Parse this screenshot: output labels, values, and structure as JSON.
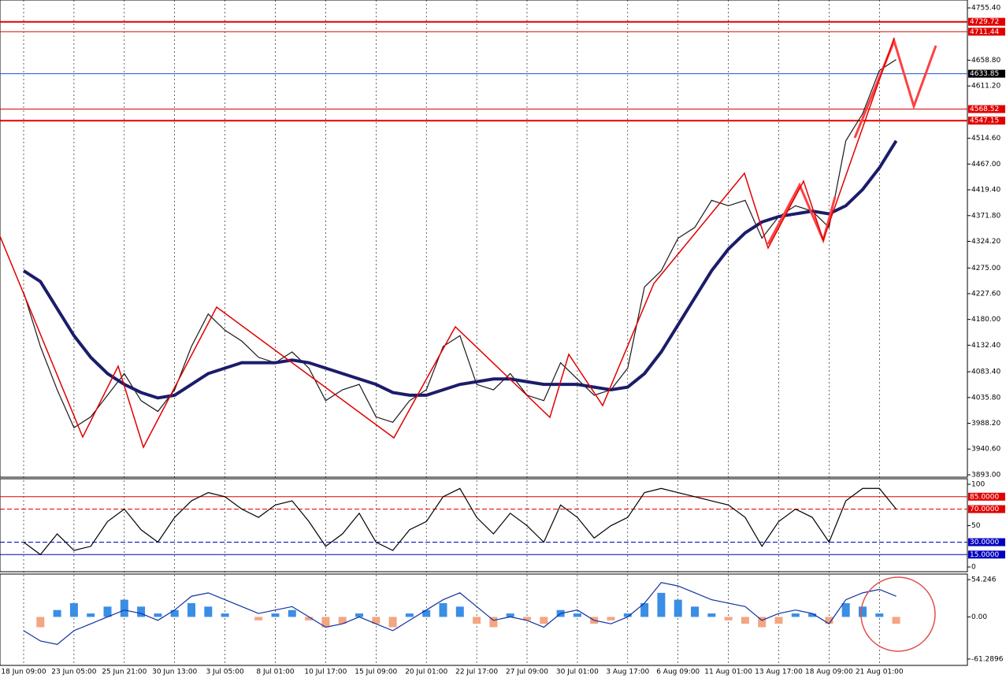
{
  "chart_data": [
    {
      "type": "line",
      "categories": [
        "18 Jun 09:00",
        null,
        null,
        "23 Jun 05:00",
        null,
        null,
        "25 Jun 21:00",
        null,
        null,
        "30 Jun 13:00",
        null,
        null,
        "3 Jul 05:00",
        null,
        null,
        "8 Jul 01:00",
        null,
        null,
        "10 Jul 17:00",
        null,
        null,
        "15 Jul 09:00",
        null,
        null,
        "20 Jul 01:00",
        null,
        null,
        "22 Jul 17:00",
        null,
        null,
        "27 Jul 09:00",
        null,
        null,
        "30 Jul 01:00",
        null,
        null,
        "3 Aug 17:00",
        null,
        null,
        "6 Aug 09:00",
        null,
        null,
        "11 Aug 01:00",
        null,
        null,
        "13 Aug 17:00",
        null,
        null,
        "18 Aug 09:00",
        null,
        null,
        "21 Aug 01:00",
        null
      ],
      "series": [
        {
          "color": "#1a1a1a",
          "values": [
            4230,
            4130,
            4050,
            3980,
            4000,
            4040,
            4080,
            4030,
            4010,
            4050,
            4130,
            4190,
            4160,
            4140,
            4110,
            4100,
            4120,
            4090,
            4030,
            4050,
            4060,
            4000,
            3990,
            4030,
            4050,
            4130,
            4150,
            4060,
            4050,
            4080,
            4040,
            4030,
            4100,
            4070,
            4040,
            4050,
            4090,
            4240,
            4270,
            4330,
            4350,
            4400,
            4390,
            4400,
            4330,
            4370,
            4390,
            4380,
            4350,
            4510,
            4560,
            4640,
            4660
          ]
        },
        {
          "color": "#1c1c6b",
          "values": [
            4270,
            4250,
            4200,
            4150,
            4110,
            4080,
            4060,
            4045,
            4035,
            4040,
            4060,
            4080,
            4090,
            4100,
            4100,
            4100,
            4105,
            4100,
            4090,
            4080,
            4070,
            4060,
            4045,
            4040,
            4040,
            4050,
            4060,
            4065,
            4070,
            4070,
            4065,
            4060,
            4060,
            4060,
            4055,
            4050,
            4055,
            4080,
            4120,
            4170,
            4220,
            4270,
            4310,
            4340,
            4360,
            4370,
            4375,
            4380,
            4375,
            4390,
            4420,
            4460,
            4510
          ]
        }
      ],
      "ylim": [
        3888.6,
        4770
      ],
      "yticks": [
        {
          "value": 4755.4,
          "label": "4755.40"
        },
        {
          "value": 4658.8,
          "label": "4658.80"
        },
        {
          "value": 4611.2,
          "label": "4611.20"
        },
        {
          "value": 4514.6,
          "label": "4514.60"
        },
        {
          "value": 4467,
          "label": "4467.00"
        },
        {
          "value": 4419.4,
          "label": "4419.40"
        },
        {
          "value": 4371.8,
          "label": "4371.80"
        },
        {
          "value": 4324.2,
          "label": "4324.20"
        },
        {
          "value": 4275,
          "label": "4275.00"
        },
        {
          "value": 4227.6,
          "label": "4227.60"
        },
        {
          "value": 4180,
          "label": "4180.00"
        },
        {
          "value": 4132.4,
          "label": "4132.40"
        },
        {
          "value": 4083.4,
          "label": "4083.40"
        },
        {
          "value": 4035.8,
          "label": "4035.80"
        },
        {
          "value": 3988.2,
          "label": "3988.20"
        },
        {
          "value": 3940.6,
          "label": "3940.60"
        },
        {
          "value": 3893,
          "label": "3893.00"
        }
      ],
      "levels": [
        {
          "value": 4729.72,
          "color": "#e00000"
        },
        {
          "value": 4711.44,
          "color": "#e00000"
        },
        {
          "value": 4633.85,
          "color": "#2050d0"
        },
        {
          "value": 4568.52,
          "color": "#e00000"
        },
        {
          "value": 4547.15,
          "color": "#e00000"
        }
      ]
    },
    {
      "type": "line",
      "series": [
        {
          "color": "#000000",
          "values": [
            30,
            15,
            40,
            20,
            25,
            55,
            70,
            45,
            30,
            60,
            80,
            90,
            85,
            70,
            60,
            75,
            80,
            55,
            25,
            40,
            65,
            30,
            20,
            45,
            55,
            85,
            95,
            60,
            40,
            65,
            50,
            30,
            75,
            60,
            35,
            50,
            60,
            90,
            95,
            90,
            85,
            80,
            75,
            60,
            25,
            55,
            70,
            60,
            30,
            80,
            95,
            95,
            70
          ]
        }
      ],
      "ylim": [
        -5.7,
        106.7
      ],
      "yticks": [
        100,
        50,
        0
      ],
      "levels": [
        {
          "value": 85,
          "label": "85.0000",
          "color": "#e00000"
        },
        {
          "value": 70,
          "label": "70.0000",
          "color": "#e00000"
        },
        {
          "value": 30,
          "label": "30.0000",
          "color": "#0000c0"
        },
        {
          "value": 15,
          "label": "15.0000",
          "color": "#0000c0"
        }
      ]
    },
    {
      "type": "bar",
      "values": [
        0,
        -15,
        10,
        20,
        5,
        15,
        25,
        15,
        5,
        10,
        20,
        15,
        5,
        0,
        -5,
        5,
        10,
        -5,
        -15,
        -10,
        5,
        -10,
        -15,
        5,
        10,
        20,
        15,
        -10,
        -15,
        5,
        -5,
        -10,
        10,
        5,
        -10,
        -5,
        5,
        20,
        35,
        25,
        15,
        5,
        -5,
        -10,
        -15,
        -10,
        5,
        5,
        -10,
        20,
        15,
        5,
        -10
      ],
      "series": [
        {
          "color": "#1030a0",
          "values": [
            -20,
            -35,
            -40,
            -20,
            -10,
            0,
            10,
            5,
            -5,
            10,
            30,
            35,
            25,
            15,
            5,
            10,
            15,
            0,
            -15,
            -10,
            0,
            -10,
            -20,
            -5,
            10,
            25,
            35,
            15,
            -5,
            0,
            -5,
            -15,
            5,
            10,
            -5,
            -10,
            0,
            20,
            50,
            45,
            35,
            25,
            20,
            15,
            -5,
            5,
            10,
            5,
            -10,
            25,
            35,
            40,
            30
          ]
        }
      ],
      "colors": {
        "positive": "#3a8ee6",
        "negative": "#f4a582"
      },
      "ylim": [
        -70.53,
        62.33
      ],
      "yticks": [
        54.246,
        {
          "value": 0,
          "label": "0.00"
        },
        -61.2896
      ]
    }
  ]
}
